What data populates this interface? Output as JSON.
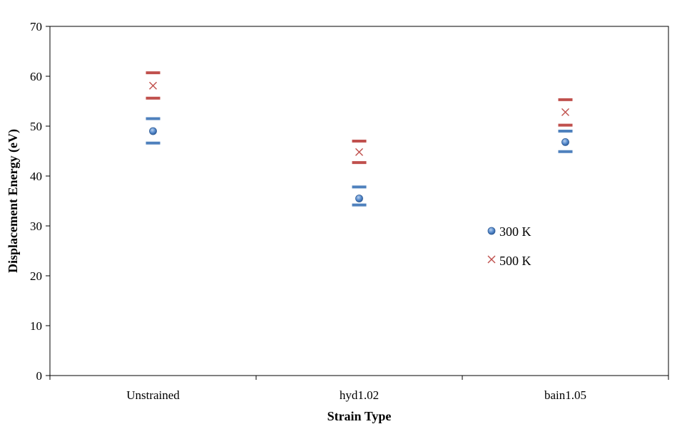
{
  "chart_data": {
    "type": "scatter",
    "title": "",
    "xlabel": "Strain Type",
    "ylabel": "Displacement Energy (eV)",
    "categories": [
      "Unstrained",
      "hyd1.02",
      "bain1.05"
    ],
    "ylim": [
      0,
      70
    ],
    "yticks": [
      "0",
      "10",
      "20",
      "30",
      "40",
      "50",
      "60",
      "70"
    ],
    "grid": false,
    "legend_position": "center-right inside plot",
    "series": [
      {
        "name": "300 K",
        "marker": "circle",
        "color": "#4F81BD",
        "values": [
          49.0,
          35.5,
          46.8
        ],
        "error_high": [
          51.5,
          37.8,
          49.0
        ],
        "error_low": [
          46.6,
          34.2,
          44.9
        ]
      },
      {
        "name": "500 K",
        "marker": "x",
        "color": "#C0504D",
        "values": [
          58.1,
          44.8,
          52.8
        ],
        "error_high": [
          60.7,
          47.0,
          55.3
        ],
        "error_low": [
          55.6,
          42.7,
          50.2
        ]
      }
    ]
  }
}
